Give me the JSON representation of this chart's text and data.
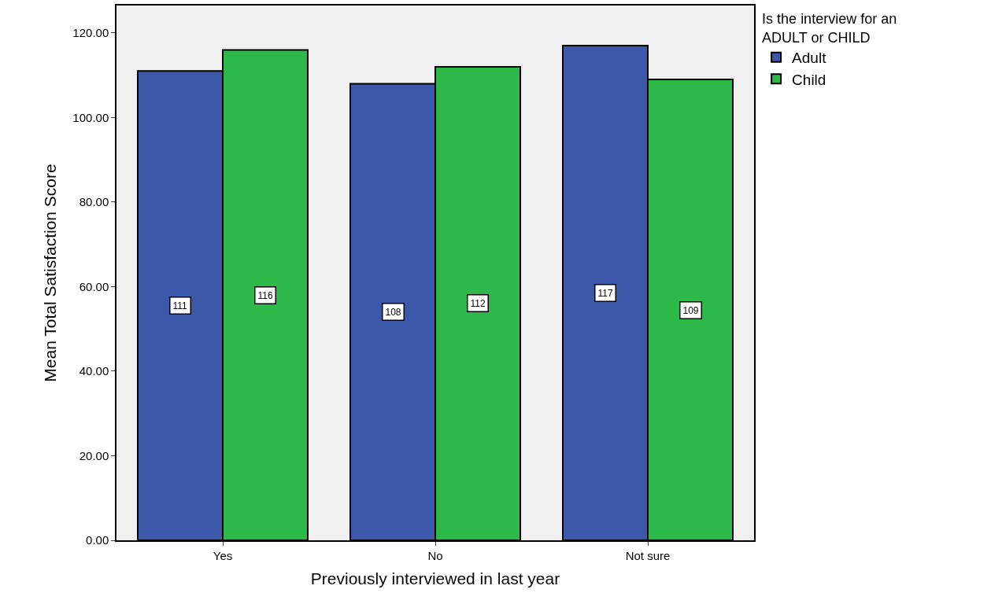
{
  "chart_data": {
    "type": "bar",
    "xlabel": "Previously interviewed in last year",
    "ylabel": "Mean Total Satisfaction Score",
    "legend_title": "Is the interview for an ADULT or CHILD",
    "categories": [
      "Yes",
      "No",
      "Not sure"
    ],
    "series": [
      {
        "name": "Adult",
        "color": "#3c58a8",
        "values": [
          111,
          108,
          117
        ]
      },
      {
        "name": "Child",
        "color": "#2db84a",
        "values": [
          116,
          112,
          109
        ]
      }
    ],
    "ylim": [
      0,
      126.5
    ],
    "yticks": [
      {
        "value": 0,
        "label": "0.00"
      },
      {
        "value": 20,
        "label": "20.00"
      },
      {
        "value": 40,
        "label": "40.00"
      },
      {
        "value": 60,
        "label": "60.00"
      },
      {
        "value": 80,
        "label": "80.00"
      },
      {
        "value": 100,
        "label": "100.00"
      },
      {
        "value": 120,
        "label": "120.00"
      }
    ],
    "data_labels": true,
    "grid": false,
    "legend": "top right"
  }
}
